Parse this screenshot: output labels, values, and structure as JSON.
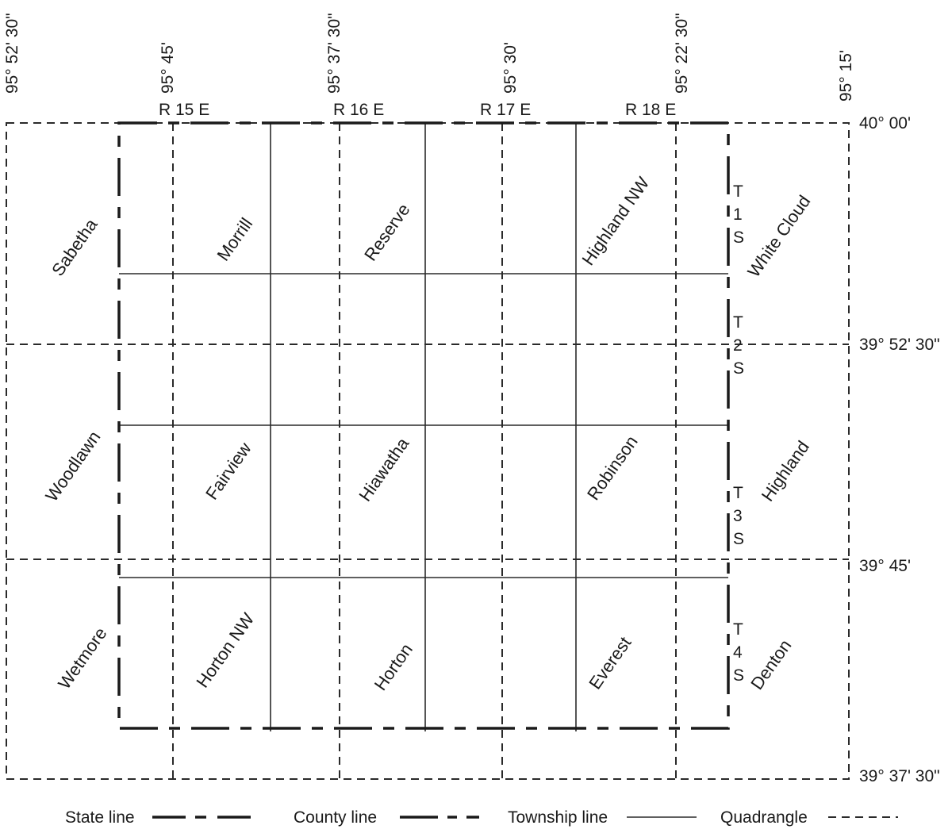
{
  "longitude_labels": [
    "95° 52' 30\"",
    "95° 45'",
    "95° 37' 30\"",
    "95° 30'",
    "95° 22' 30\"",
    "95° 15'"
  ],
  "latitude_labels": [
    "40° 00'",
    "39° 52' 30\"",
    "39° 45'",
    "39° 37' 30\""
  ],
  "range_labels": [
    "R 15 E",
    "R 16 E",
    "R 17 E",
    "R 18 E"
  ],
  "township_labels": [
    [
      "T",
      "1",
      "S"
    ],
    [
      "T",
      "2",
      "S"
    ],
    [
      "T",
      "3",
      "S"
    ],
    [
      "T",
      "4",
      "S"
    ]
  ],
  "quadrangles": [
    "Sabetha",
    "Morrill",
    "Reserve",
    "Highland NW",
    "White Cloud",
    "Woodlawn",
    "Fairview",
    "Hiawatha",
    "Robinson",
    "Highland",
    "Wetmore",
    "Horton NW",
    "Horton",
    "Everest",
    "Denton"
  ],
  "legend": {
    "state_line": "State line",
    "county_line": "County line",
    "township_line": "Township line",
    "quadrangle": "Quadrangle"
  }
}
